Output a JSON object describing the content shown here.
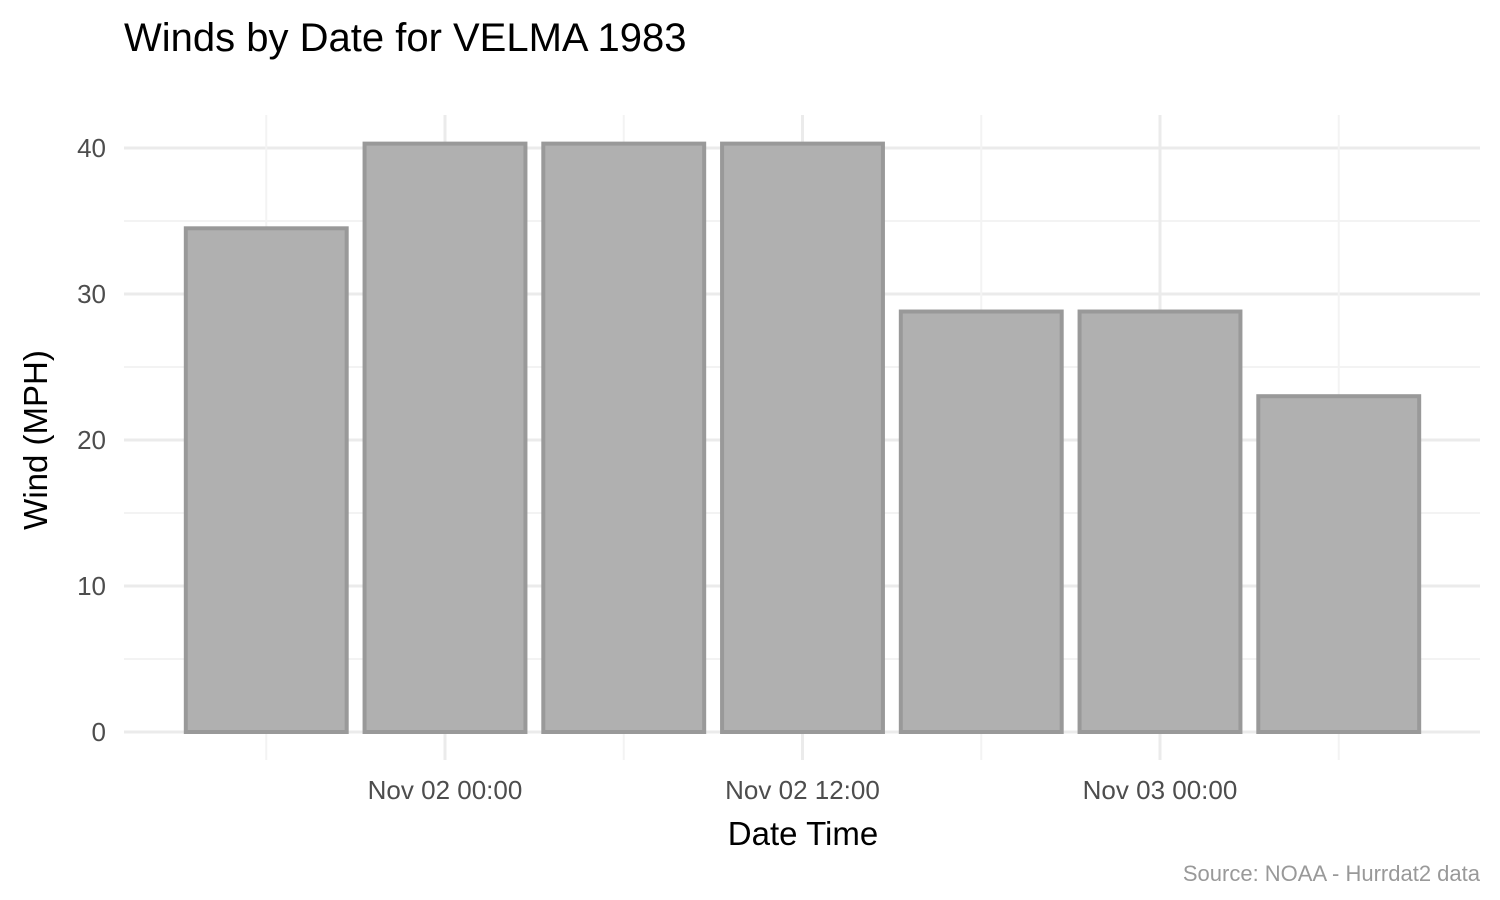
{
  "chart_data": {
    "type": "bar",
    "title": "Winds by Date for VELMA 1983",
    "xlabel": "Date Time",
    "ylabel": "Wind (MPH)",
    "caption": "Source: NOAA - Hurrdat2 data",
    "x": [
      "1983-11-01 18:00",
      "1983-11-02 00:00",
      "1983-11-02 06:00",
      "1983-11-02 12:00",
      "1983-11-02 18:00",
      "1983-11-03 00:00",
      "1983-11-03 06:00"
    ],
    "values": [
      34.5,
      40.3,
      40.3,
      40.3,
      28.8,
      28.8,
      23.0
    ],
    "ylim": [
      0,
      42
    ],
    "yticks": [
      0,
      10,
      20,
      30,
      40
    ],
    "xticks": [
      {
        "x": "1983-11-02 00:00",
        "label": "Nov 02 00:00"
      },
      {
        "x": "1983-11-02 12:00",
        "label": "Nov 02 12:00"
      },
      {
        "x": "1983-11-03 00:00",
        "label": "Nov 03 00:00"
      }
    ],
    "grid": true,
    "colors": {
      "bar_fill": "#b0b0b0",
      "bar_stroke": "#999999",
      "grid_major": "#ebebeb",
      "grid_minor": "#f3f3f3"
    }
  }
}
